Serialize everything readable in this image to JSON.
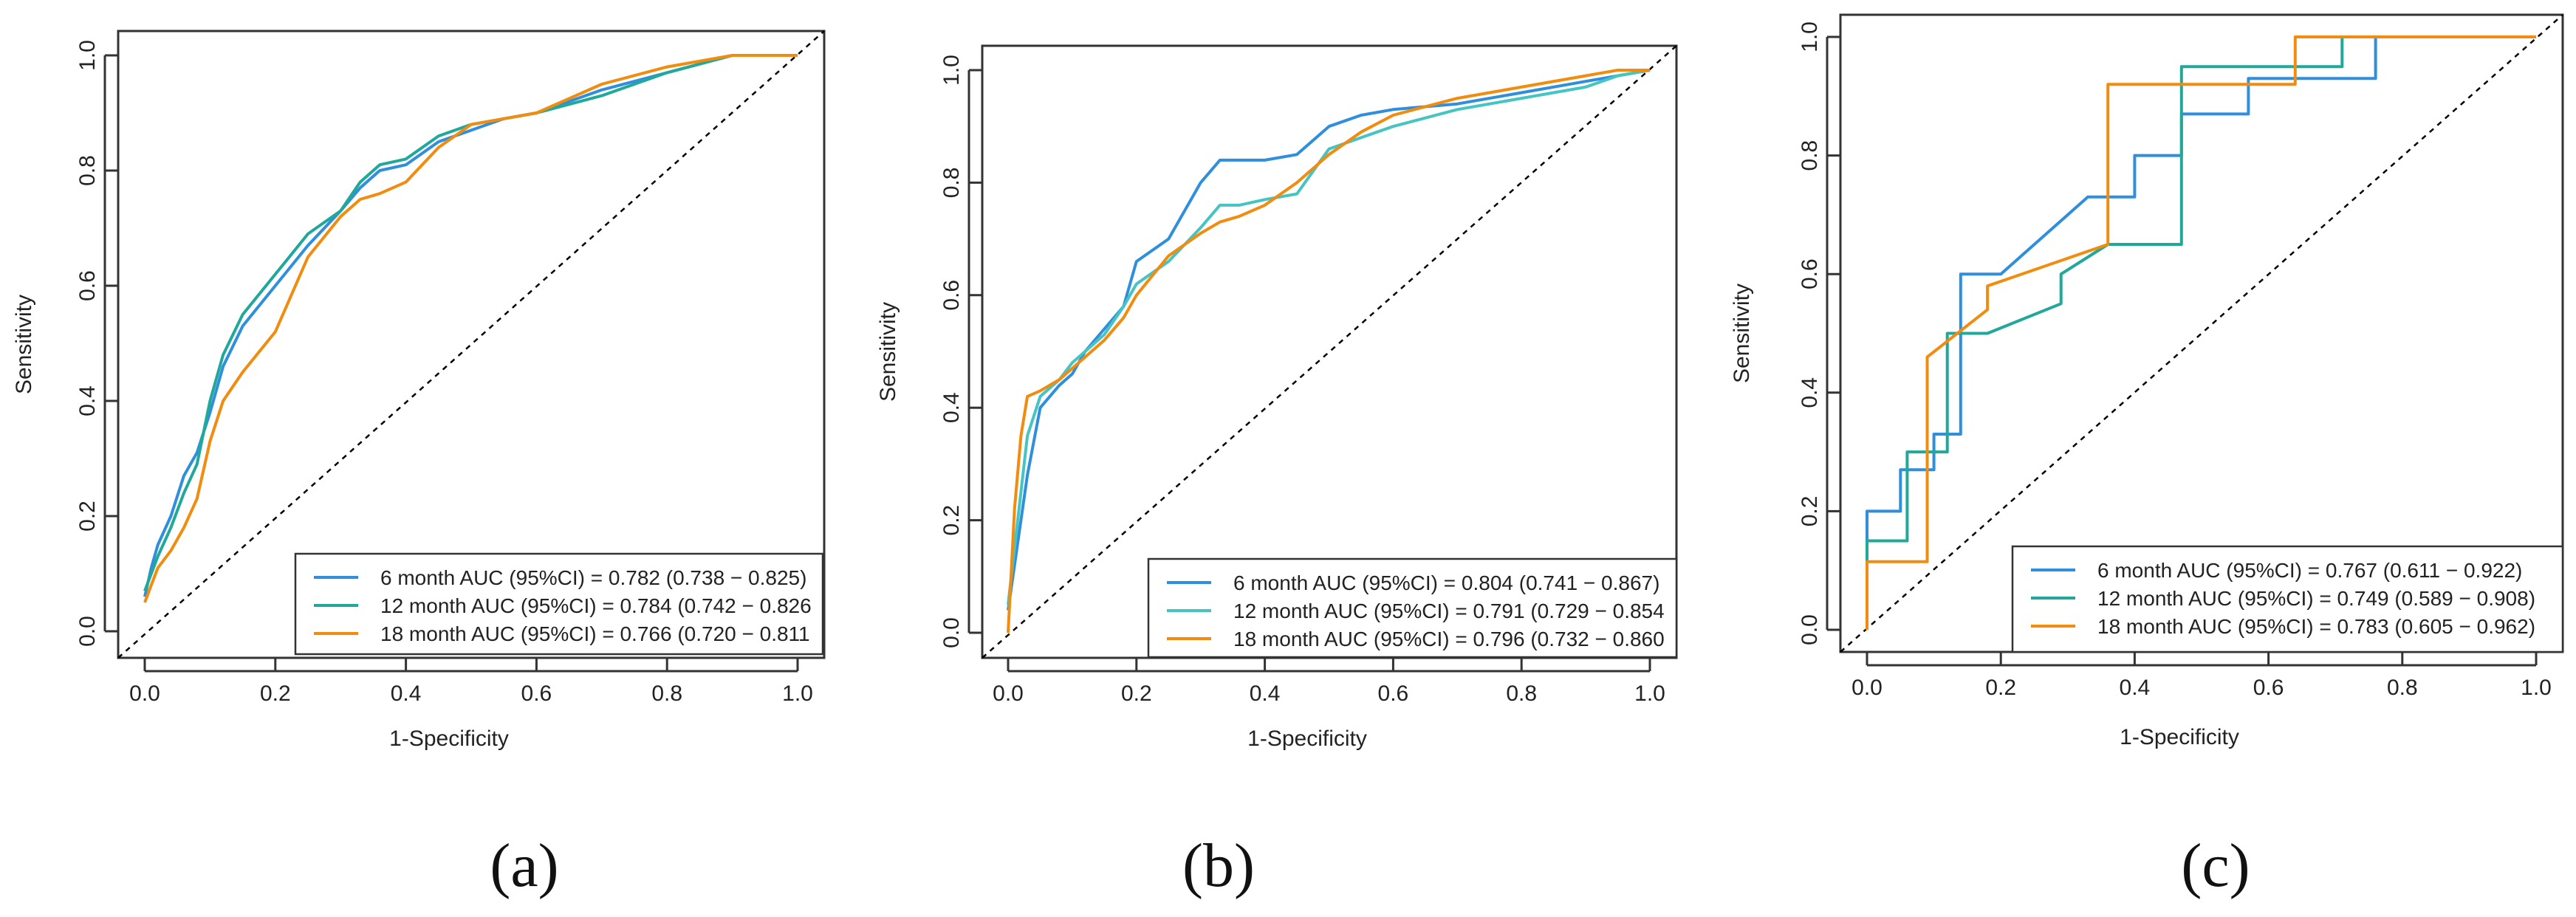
{
  "figure": {
    "panel_labels": [
      "(a)",
      "(b)",
      "(c)"
    ]
  },
  "colors": {
    "6 month": "#2f8fdd",
    "12 month": "#20a89a",
    "18 month": "#f28c0f",
    "12 month (b)": "#45c4c4",
    "reference": "#000000"
  },
  "chart_data": [
    {
      "type": "line",
      "panel": "(a)",
      "title": "",
      "xlabel": "1-Specificity",
      "ylabel": "Sensitivity",
      "xlim": [
        0,
        1
      ],
      "ylim": [
        0,
        1
      ],
      "xticks": [
        "0.0",
        "0.2",
        "0.4",
        "0.6",
        "0.8",
        "1.0"
      ],
      "yticks": [
        "0.0",
        "0.2",
        "0.4",
        "0.6",
        "0.8",
        "1.0"
      ],
      "legend_position": "bottom-right",
      "reference_line": "diagonal",
      "series": [
        {
          "name": "6 month AUC (95%CI) = 0.782 (0.738 − 0.825)",
          "color_key": "6 month",
          "x": [
            0,
            0.01,
            0.02,
            0.04,
            0.06,
            0.08,
            0.1,
            0.12,
            0.15,
            0.2,
            0.25,
            0.3,
            0.33,
            0.36,
            0.4,
            0.45,
            0.5,
            0.55,
            0.6,
            0.7,
            0.8,
            0.9,
            1.0
          ],
          "y": [
            0.06,
            0.11,
            0.15,
            0.2,
            0.27,
            0.31,
            0.38,
            0.46,
            0.53,
            0.6,
            0.67,
            0.73,
            0.77,
            0.8,
            0.81,
            0.85,
            0.87,
            0.89,
            0.9,
            0.94,
            0.97,
            1.0,
            1.0
          ]
        },
        {
          "name": "12 month AUC (95%CI) = 0.784 (0.742 − 0.826",
          "color_key": "12 month",
          "x": [
            0,
            0.01,
            0.02,
            0.04,
            0.06,
            0.08,
            0.1,
            0.12,
            0.15,
            0.2,
            0.25,
            0.3,
            0.33,
            0.36,
            0.4,
            0.45,
            0.5,
            0.55,
            0.6,
            0.7,
            0.8,
            0.9,
            1.0
          ],
          "y": [
            0.07,
            0.1,
            0.13,
            0.18,
            0.24,
            0.29,
            0.4,
            0.48,
            0.55,
            0.62,
            0.69,
            0.73,
            0.78,
            0.81,
            0.82,
            0.86,
            0.88,
            0.89,
            0.9,
            0.93,
            0.97,
            1.0,
            1.0
          ]
        },
        {
          "name": "18 month AUC (95%CI) = 0.766 (0.720 − 0.811",
          "color_key": "18 month",
          "x": [
            0,
            0.01,
            0.02,
            0.04,
            0.06,
            0.08,
            0.1,
            0.12,
            0.15,
            0.2,
            0.25,
            0.3,
            0.33,
            0.36,
            0.4,
            0.45,
            0.5,
            0.55,
            0.6,
            0.7,
            0.8,
            0.9,
            1.0
          ],
          "y": [
            0.05,
            0.08,
            0.11,
            0.14,
            0.18,
            0.23,
            0.33,
            0.4,
            0.45,
            0.52,
            0.65,
            0.72,
            0.75,
            0.76,
            0.78,
            0.84,
            0.88,
            0.89,
            0.9,
            0.95,
            0.98,
            1.0,
            1.0
          ]
        }
      ]
    },
    {
      "type": "line",
      "panel": "(b)",
      "title": "",
      "xlabel": "1-Specificity",
      "ylabel": "Sensitivity",
      "xlim": [
        0,
        1
      ],
      "ylim": [
        0,
        1
      ],
      "xticks": [
        "0.0",
        "0.2",
        "0.4",
        "0.6",
        "0.8",
        "1.0"
      ],
      "yticks": [
        "0.0",
        "0.2",
        "0.4",
        "0.6",
        "0.8",
        "1.0"
      ],
      "legend_position": "bottom-right",
      "reference_line": "diagonal",
      "series": [
        {
          "name": "6 month AUC (95%CI) = 0.804 (0.741 − 0.867)",
          "color_key": "6 month",
          "x": [
            0,
            0.01,
            0.02,
            0.03,
            0.05,
            0.08,
            0.1,
            0.12,
            0.15,
            0.18,
            0.2,
            0.25,
            0.3,
            0.33,
            0.36,
            0.4,
            0.45,
            0.5,
            0.55,
            0.6,
            0.7,
            0.8,
            0.9,
            0.95,
            1.0
          ],
          "y": [
            0.04,
            0.12,
            0.2,
            0.28,
            0.4,
            0.44,
            0.46,
            0.5,
            0.54,
            0.58,
            0.66,
            0.7,
            0.8,
            0.84,
            0.84,
            0.84,
            0.85,
            0.9,
            0.92,
            0.93,
            0.94,
            0.96,
            0.98,
            0.99,
            1.0
          ]
        },
        {
          "name": "12 month AUC (95%CI) = 0.791 (0.729 − 0.854",
          "color_key": "12 month (b)",
          "x": [
            0,
            0.01,
            0.02,
            0.03,
            0.05,
            0.08,
            0.1,
            0.12,
            0.15,
            0.18,
            0.2,
            0.25,
            0.3,
            0.33,
            0.36,
            0.4,
            0.45,
            0.5,
            0.55,
            0.6,
            0.7,
            0.8,
            0.9,
            0.95,
            1.0
          ],
          "y": [
            0.05,
            0.15,
            0.25,
            0.35,
            0.42,
            0.45,
            0.48,
            0.5,
            0.53,
            0.58,
            0.62,
            0.66,
            0.72,
            0.76,
            0.76,
            0.77,
            0.78,
            0.86,
            0.88,
            0.9,
            0.93,
            0.95,
            0.97,
            0.99,
            1.0
          ]
        },
        {
          "name": "18 month AUC (95%CI) = 0.796 (0.732 − 0.860",
          "color_key": "18 month",
          "x": [
            0,
            0.01,
            0.02,
            0.03,
            0.05,
            0.08,
            0.1,
            0.12,
            0.15,
            0.18,
            0.2,
            0.25,
            0.3,
            0.33,
            0.36,
            0.4,
            0.45,
            0.5,
            0.55,
            0.6,
            0.7,
            0.8,
            0.9,
            0.95,
            1.0
          ],
          "y": [
            0.0,
            0.22,
            0.35,
            0.42,
            0.43,
            0.45,
            0.47,
            0.49,
            0.52,
            0.56,
            0.6,
            0.67,
            0.71,
            0.73,
            0.74,
            0.76,
            0.8,
            0.85,
            0.89,
            0.92,
            0.95,
            0.97,
            0.99,
            1.0,
            1.0
          ]
        }
      ]
    },
    {
      "type": "line",
      "panel": "(c)",
      "title": "",
      "xlabel": "1-Specificity",
      "ylabel": "Sensitivity",
      "xlim": [
        0,
        1
      ],
      "ylim": [
        0,
        1
      ],
      "xticks": [
        "0.0",
        "0.2",
        "0.4",
        "0.6",
        "0.8",
        "1.0"
      ],
      "yticks": [
        "0.0",
        "0.2",
        "0.4",
        "0.6",
        "0.8",
        "1.0"
      ],
      "legend_position": "bottom-right",
      "reference_line": "diagonal",
      "step": true,
      "series": [
        {
          "name": "6 month AUC (95%CI) = 0.767 (0.611 − 0.922)",
          "color_key": "6 month",
          "x": [
            0,
            0,
            0.05,
            0.05,
            0.1,
            0.1,
            0.14,
            0.14,
            0.2,
            0.27,
            0.33,
            0.4,
            0.4,
            0.47,
            0.47,
            0.57,
            0.57,
            0.76,
            0.76,
            1.0
          ],
          "y": [
            0,
            0.2,
            0.2,
            0.27,
            0.27,
            0.33,
            0.33,
            0.6,
            0.6,
            0.67,
            0.73,
            0.73,
            0.8,
            0.8,
            0.87,
            0.87,
            0.93,
            0.93,
            1.0,
            1.0
          ]
        },
        {
          "name": "12 month AUC (95%CI) = 0.749 (0.589 − 0.908)",
          "color_key": "12 month",
          "x": [
            0,
            0,
            0.06,
            0.06,
            0.12,
            0.12,
            0.18,
            0.29,
            0.29,
            0.36,
            0.47,
            0.47,
            0.71,
            0.71,
            1.0
          ],
          "y": [
            0,
            0.15,
            0.15,
            0.3,
            0.3,
            0.5,
            0.5,
            0.55,
            0.6,
            0.65,
            0.65,
            0.95,
            0.95,
            1.0,
            1.0
          ]
        },
        {
          "name": "18 month AUC (95%CI) = 0.783 (0.605 − 0.962)",
          "color_key": "18 month",
          "x": [
            0,
            0,
            0.09,
            0.09,
            0.18,
            0.18,
            0.36,
            0.36,
            0.64,
            0.64,
            1.0
          ],
          "y": [
            0,
            0.115,
            0.115,
            0.46,
            0.54,
            0.58,
            0.65,
            0.92,
            0.92,
            1.0,
            1.0
          ]
        }
      ]
    }
  ]
}
